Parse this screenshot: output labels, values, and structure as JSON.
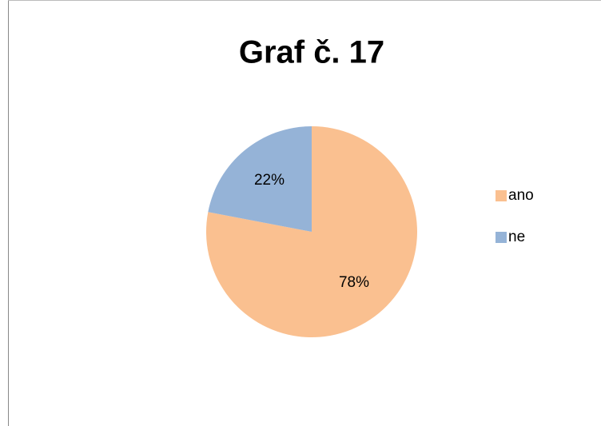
{
  "chart_data": {
    "type": "pie",
    "title": "Graf č. 17",
    "categories": [
      "ano",
      "ne"
    ],
    "values": [
      78,
      22
    ],
    "value_labels": [
      "78%",
      "22%"
    ],
    "colors": [
      "#FAC090",
      "#95B3D7"
    ],
    "legend": "right"
  }
}
